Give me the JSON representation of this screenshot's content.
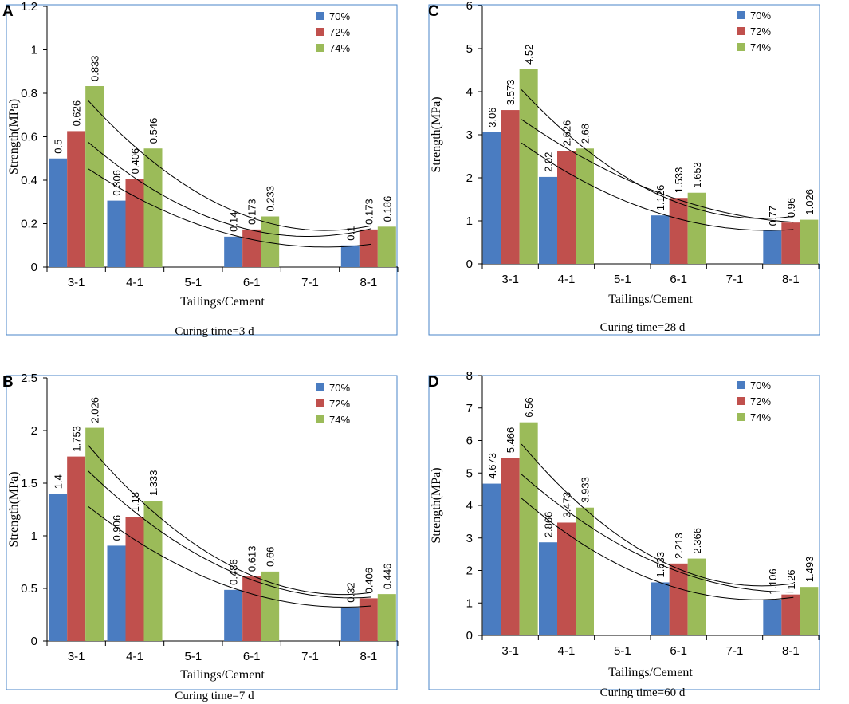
{
  "colors": {
    "s70": "#4a7cc1",
    "s72": "#c0504d",
    "s74": "#9bbb59",
    "frame": "#4a86c8",
    "axis": "#000000"
  },
  "chart_data": [
    {
      "panel_label": "A",
      "type": "bar",
      "categories": [
        "3-1",
        "4-1",
        "5-1",
        "6-1",
        "7-1",
        "8-1"
      ],
      "series": [
        {
          "name": "70%",
          "values": [
            0.5,
            0.306,
            null,
            0.14,
            null,
            0.1
          ],
          "labels": [
            "0.5",
            "0.306",
            "",
            "0.14",
            "",
            "0.1"
          ]
        },
        {
          "name": "72%",
          "values": [
            0.626,
            0.406,
            null,
            0.173,
            null,
            0.173
          ],
          "labels": [
            "0.626",
            "0.406",
            "",
            "0.173",
            "",
            "0.173"
          ]
        },
        {
          "name": "74%",
          "values": [
            0.833,
            0.546,
            null,
            0.233,
            null,
            0.186
          ],
          "labels": [
            "0.833",
            "0.546",
            "",
            "0.233",
            "",
            "0.186"
          ]
        }
      ],
      "ylim": [
        0,
        1.2
      ],
      "yticks": [
        0,
        0.2,
        0.4,
        0.6,
        0.8,
        1,
        1.2
      ],
      "ytick_labels": [
        "0",
        "0.2",
        "0.4",
        "0.6",
        "0.8",
        "1",
        "1.2"
      ],
      "xlabel": "Tailings/Cement",
      "ylabel": "Strength(MPa)",
      "caption": "Curing time=3 d",
      "legend_position": "top-right",
      "trendlines": "quadratic fit per series"
    },
    {
      "panel_label": "B",
      "type": "bar",
      "categories": [
        "3-1",
        "4-1",
        "5-1",
        "6-1",
        "7-1",
        "8-1"
      ],
      "series": [
        {
          "name": "70%",
          "values": [
            1.4,
            0.906,
            null,
            0.486,
            null,
            0.32
          ],
          "labels": [
            "1.4",
            "0.906",
            "",
            "0.486",
            "",
            "0.32"
          ]
        },
        {
          "name": "72%",
          "values": [
            1.753,
            1.18,
            null,
            0.613,
            null,
            0.406
          ],
          "labels": [
            "1.753",
            "1.18",
            "",
            "0.613",
            "",
            "0.406"
          ]
        },
        {
          "name": "74%",
          "values": [
            2.026,
            1.333,
            null,
            0.66,
            null,
            0.446
          ],
          "labels": [
            "2.026",
            "1.333",
            "",
            "0.66",
            "",
            "0.446"
          ]
        }
      ],
      "ylim": [
        0,
        2.5
      ],
      "yticks": [
        0,
        0.5,
        1,
        1.5,
        2,
        2.5
      ],
      "ytick_labels": [
        "0",
        "0.5",
        "1",
        "1.5",
        "2",
        "2.5"
      ],
      "xlabel": "Tailings/Cement",
      "ylabel": "Strength(MPa)",
      "caption": "Curing time=7 d",
      "legend_position": "top-right",
      "trendlines": "quadratic fit per series"
    },
    {
      "panel_label": "C",
      "type": "bar",
      "categories": [
        "3-1",
        "4-1",
        "5-1",
        "6-1",
        "7-1",
        "8-1"
      ],
      "series": [
        {
          "name": "70%",
          "values": [
            3.06,
            2.02,
            null,
            1.126,
            null,
            0.77
          ],
          "labels": [
            "3.06",
            "2.02",
            "",
            "1.126",
            "",
            "0.77"
          ]
        },
        {
          "name": "72%",
          "values": [
            3.573,
            2.626,
            null,
            1.533,
            null,
            0.96
          ],
          "labels": [
            "3.573",
            "2.626",
            "",
            "1.533",
            "",
            "0.96"
          ]
        },
        {
          "name": "74%",
          "values": [
            4.52,
            2.68,
            null,
            1.653,
            null,
            1.026
          ],
          "labels": [
            "4.52",
            "2.68",
            "",
            "1.653",
            "",
            "1.026"
          ]
        }
      ],
      "ylim": [
        0,
        6
      ],
      "yticks": [
        0,
        1,
        2,
        3,
        4,
        5,
        6
      ],
      "ytick_labels": [
        "0",
        "1",
        "2",
        "3",
        "4",
        "5",
        "6"
      ],
      "xlabel": "Tailings/Cement",
      "ylabel": "Strength(MPa)",
      "caption": "Curing time=28 d",
      "legend_position": "top-right",
      "trendlines": "quadratic fit per series"
    },
    {
      "panel_label": "D",
      "type": "bar",
      "categories": [
        "3-1",
        "4-1",
        "5-1",
        "6-1",
        "7-1",
        "8-1"
      ],
      "series": [
        {
          "name": "70%",
          "values": [
            4.673,
            2.866,
            null,
            1.633,
            null,
            1.106
          ],
          "labels": [
            "4.673",
            "2.866",
            "",
            "1.633",
            "",
            "1.106"
          ]
        },
        {
          "name": "72%",
          "values": [
            5.466,
            3.473,
            null,
            2.213,
            null,
            1.26
          ],
          "labels": [
            "5.466",
            "3.473",
            "",
            "2.213",
            "",
            "1.26"
          ]
        },
        {
          "name": "74%",
          "values": [
            6.56,
            3.933,
            null,
            2.366,
            null,
            1.493
          ],
          "labels": [
            "6.56",
            "3.933",
            "",
            "2.366",
            "",
            "1.493"
          ]
        }
      ],
      "ylim": [
        0,
        8
      ],
      "yticks": [
        0,
        1,
        2,
        3,
        4,
        5,
        6,
        7,
        8
      ],
      "ytick_labels": [
        "0",
        "1",
        "2",
        "3",
        "4",
        "5",
        "6",
        "7",
        "8"
      ],
      "xlabel": "Tailings/Cement",
      "ylabel": "Strength(MPa)",
      "caption": "Curing time=60 d",
      "legend_position": "top-right",
      "trendlines": "quadratic fit per series"
    }
  ]
}
